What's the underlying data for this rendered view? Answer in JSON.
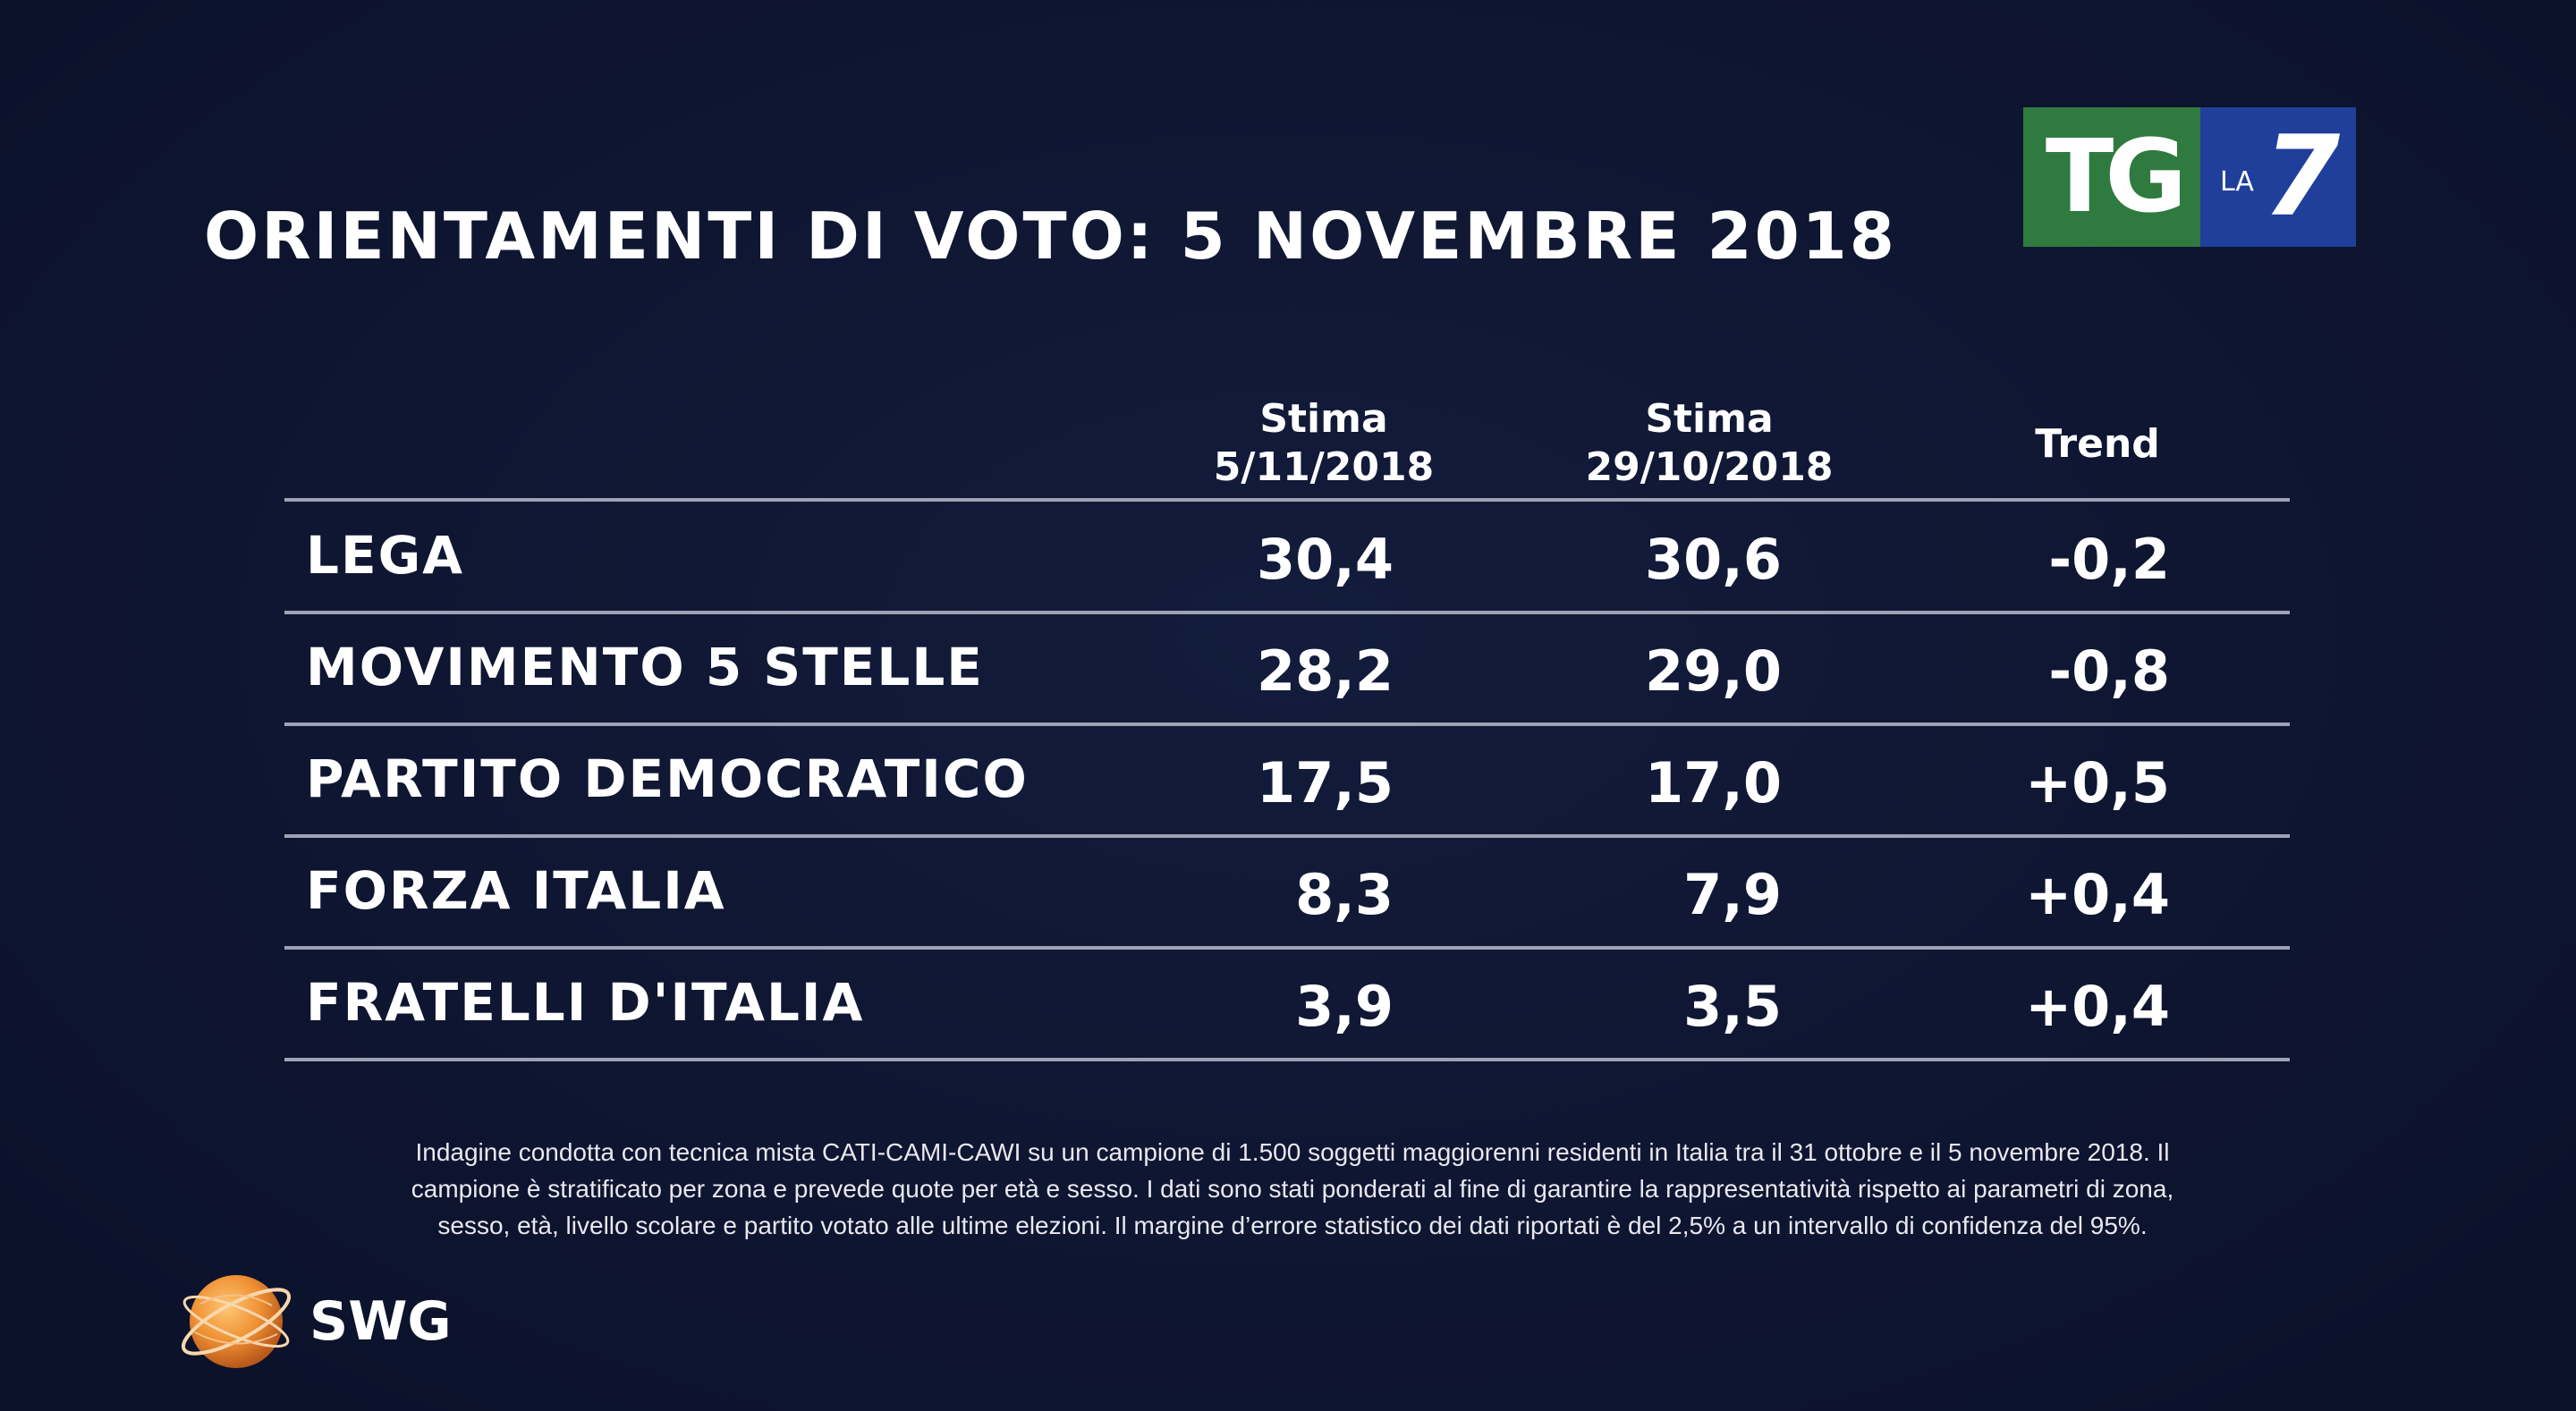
{
  "title": "ORIENTAMENTI DI VOTO: 5 NOVEMBRE 2018",
  "logo": {
    "tg": "TG",
    "la": "LA",
    "seven": "7",
    "tg_color": "#2f7a3f",
    "la7_color": "#1f3f9a"
  },
  "chart_data": {
    "type": "table",
    "columns": [
      {
        "line1": "Stima",
        "line2": "5/11/2018"
      },
      {
        "line1": "Stima",
        "line2": "29/10/2018"
      },
      {
        "line1": "Trend",
        "line2": ""
      }
    ],
    "rows": [
      {
        "party": "LEGA",
        "stima_5_11": "30,4",
        "stima_29_10": "30,6",
        "trend": "-0,2"
      },
      {
        "party": "MOVIMENTO 5 STELLE",
        "stima_5_11": "28,2",
        "stima_29_10": "29,0",
        "trend": "-0,8"
      },
      {
        "party": "PARTITO DEMOCRATICO",
        "stima_5_11": "17,5",
        "stima_29_10": "17,0",
        "trend": "+0,5"
      },
      {
        "party": "FORZA ITALIA",
        "stima_5_11": "8,3",
        "stima_29_10": "7,9",
        "trend": "+0,4"
      },
      {
        "party": "FRATELLI D'ITALIA",
        "stima_5_11": "3,9",
        "stima_29_10": "3,5",
        "trend": "+0,4"
      }
    ]
  },
  "footnote": {
    "line1": "Indagine condotta con tecnica mista CATI-CAMI-CAWI su un campione di 1.500 soggetti maggiorenni residenti in Italia tra il 31 ottobre e il 5 novembre 2018. Il",
    "line2": "campione è stratificato per zona e prevede quote per età e sesso. I dati sono stati ponderati al fine di garantire la rappresentatività rispetto ai parametri di zona,",
    "line3": "sesso, età, livello scolare e partito votato alle ultime elezioni. Il margine d’errore statistico dei dati riportati è del 2,5% a un intervallo di confidenza del 95%."
  },
  "brand": {
    "name": "SWG",
    "globe_color": "#e8892a"
  }
}
